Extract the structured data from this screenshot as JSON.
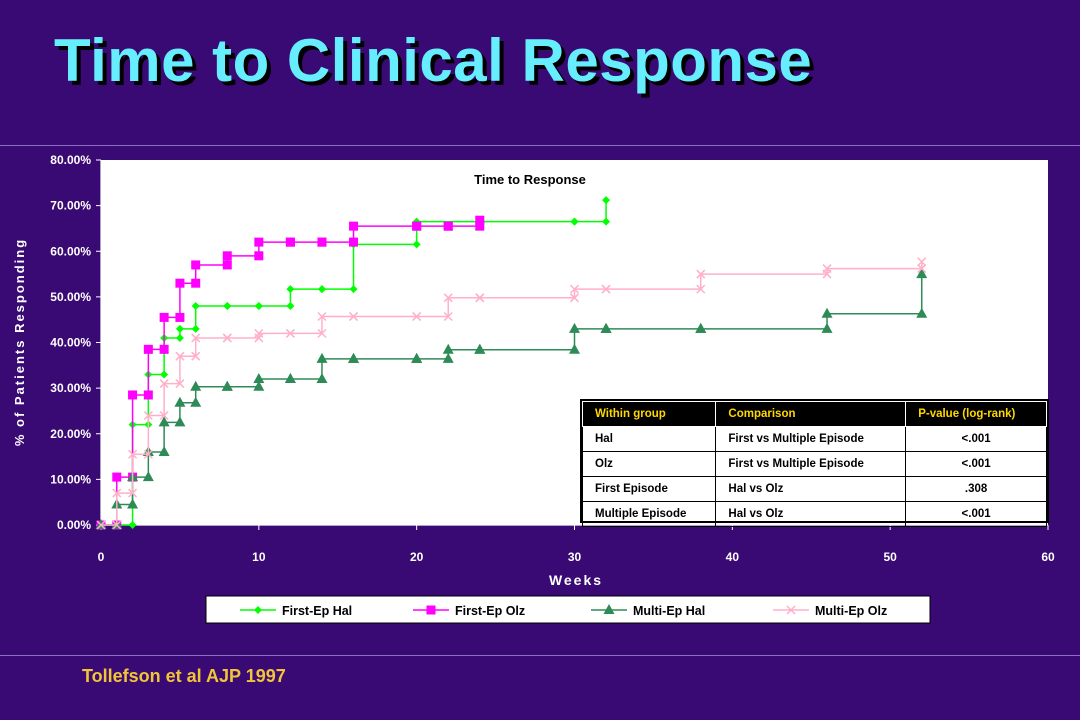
{
  "slide": {
    "title": "Time to Clinical Response",
    "citation": "Tollefson et al AJP 1997"
  },
  "chart_data": {
    "type": "line",
    "title": "Time to Response",
    "xlabel": "Weeks",
    "ylabel": "% of Patients Responding",
    "xlim": [
      0,
      60
    ],
    "ylim": [
      0,
      80
    ],
    "x_ticks": [
      "0",
      "10",
      "20",
      "30",
      "40",
      "50",
      "60"
    ],
    "y_ticks": [
      "0.00%",
      "10.00%",
      "20.00%",
      "30.00%",
      "40.00%",
      "50.00%",
      "60.00%",
      "70.00%",
      "80.00%"
    ],
    "step": true,
    "grid": false,
    "legend_position": "bottom",
    "series": [
      {
        "name": "First-Ep Hal",
        "color": "#00ff00",
        "marker": "diamond",
        "x": [
          0,
          1,
          2,
          3,
          4,
          5,
          6,
          8,
          10,
          12,
          14,
          16,
          20,
          30,
          32
        ],
        "y": [
          0,
          0,
          22,
          33,
          41,
          43,
          48,
          48,
          48,
          51.7,
          51.7,
          61.5,
          66.5,
          66.5,
          71.2
        ]
      },
      {
        "name": "First-Ep Olz",
        "color": "#ff00ff",
        "marker": "square",
        "x": [
          0,
          1,
          2,
          3,
          4,
          5,
          6,
          8,
          10,
          12,
          14,
          16,
          20,
          22,
          24
        ],
        "y": [
          0,
          10.5,
          28.5,
          38.5,
          45.5,
          53,
          57,
          59,
          62,
          62,
          62,
          65.5,
          65.5,
          65.5,
          66.8
        ]
      },
      {
        "name": "Multi-Ep Hal",
        "color": "#2e8b57",
        "marker": "triangle",
        "x": [
          0,
          1,
          2,
          3,
          4,
          5,
          6,
          8,
          10,
          12,
          14,
          16,
          20,
          22,
          24,
          30,
          32,
          38,
          46,
          52
        ],
        "y": [
          0,
          4.5,
          10.5,
          16,
          22.5,
          26.8,
          30.3,
          30.3,
          32,
          32,
          36.4,
          36.4,
          36.4,
          38.4,
          38.4,
          43,
          43,
          43,
          46.3,
          55
        ]
      },
      {
        "name": "Multi-Ep Olz",
        "color": "#ffb0c8",
        "marker": "x",
        "x": [
          0,
          1,
          2,
          3,
          4,
          5,
          6,
          8,
          10,
          12,
          14,
          16,
          20,
          22,
          24,
          30,
          32,
          38,
          46,
          52
        ],
        "y": [
          0,
          7,
          15.5,
          24,
          31,
          37,
          41,
          41,
          42,
          42,
          45.7,
          45.7,
          45.7,
          49.8,
          49.8,
          51.7,
          51.7,
          55,
          56.2,
          57.7
        ]
      }
    ]
  },
  "stats_table": {
    "headers": [
      "Within group",
      "Comparison",
      "P-value (log-rank)"
    ],
    "rows": [
      [
        "Hal",
        "First vs Multiple Episode",
        "<.001"
      ],
      [
        "Olz",
        "First vs Multiple Episode",
        "<.001"
      ],
      [
        "First Episode",
        "Hal vs Olz",
        ".308"
      ],
      [
        "Multiple Episode",
        "Hal vs Olz",
        "<.001"
      ]
    ]
  }
}
